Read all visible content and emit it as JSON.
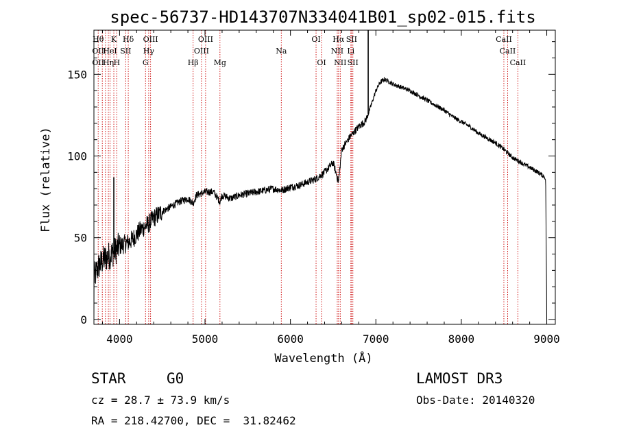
{
  "chart_data": {
    "type": "line",
    "title": "spec-56737-HD143707N334041B01_sp02-015.fits",
    "xlabel": "Wavelength (Å)",
    "ylabel": "Flux (relative)",
    "xlim": [
      3700,
      9100
    ],
    "ylim": [
      -3,
      177
    ],
    "x_ticks": [
      4000,
      5000,
      6000,
      7000,
      8000,
      9000
    ],
    "y_ticks": [
      0,
      50,
      100,
      150
    ],
    "spectrum_anchors": {
      "x": [
        3700,
        3750,
        3800,
        3850,
        3900,
        3950,
        4000,
        4050,
        4100,
        4150,
        4200,
        4250,
        4300,
        4350,
        4400,
        4500,
        4600,
        4700,
        4800,
        4861,
        4900,
        5000,
        5100,
        5175,
        5200,
        5300,
        5400,
        5500,
        5600,
        5700,
        5800,
        5900,
        6000,
        6100,
        6200,
        6300,
        6400,
        6500,
        6563,
        6600,
        6700,
        6800,
        6870,
        6900,
        7000,
        7050,
        7100,
        7200,
        7300,
        7400,
        7500,
        7600,
        7700,
        7800,
        7900,
        8000,
        8100,
        8200,
        8300,
        8400,
        8500,
        8600,
        8700,
        8800,
        8900,
        8980,
        9000
      ],
      "y": [
        25,
        32,
        36,
        38,
        40,
        42,
        45,
        46,
        47,
        49,
        52,
        55,
        57,
        59,
        62,
        66,
        69,
        72,
        74,
        71,
        76,
        78,
        78,
        72,
        76,
        74,
        76,
        77,
        78,
        79,
        80,
        79,
        81,
        82,
        84,
        86,
        90,
        96,
        84,
        104,
        112,
        118,
        121,
        124,
        140,
        145,
        147,
        144,
        142,
        140,
        137,
        134,
        131,
        128,
        124,
        121,
        118,
        114,
        111,
        108,
        104,
        99,
        96,
        93,
        90,
        87,
        76
      ]
    },
    "spikes": [
      {
        "x": 3933,
        "y": 87
      },
      {
        "x": 6910,
        "y": 177
      }
    ],
    "lines": [
      {
        "x": 3750,
        "labels": [
          "Hθ",
          "OII",
          "OII"
        ]
      },
      {
        "x": 3798,
        "labels": []
      },
      {
        "x": 3835,
        "labels": []
      },
      {
        "x": 3869,
        "labels": [
          "",
          "",
          "Hη"
        ]
      },
      {
        "x": 3889,
        "labels": [
          "",
          "HeI",
          ""
        ]
      },
      {
        "x": 3933,
        "labels": [
          "K",
          "",
          ""
        ]
      },
      {
        "x": 3968,
        "labels": [
          "",
          "",
          "H"
        ]
      },
      {
        "x": 4072,
        "labels": [
          "",
          "SII",
          ""
        ]
      },
      {
        "x": 4102,
        "labels": [
          "Hδ",
          "",
          ""
        ]
      },
      {
        "x": 4304,
        "labels": [
          "",
          "",
          "G"
        ]
      },
      {
        "x": 4341,
        "labels": [
          "",
          "Hγ",
          ""
        ]
      },
      {
        "x": 4363,
        "labels": [
          "OIII",
          "",
          ""
        ]
      },
      {
        "x": 4861,
        "labels": [
          "",
          "",
          "Hβ"
        ]
      },
      {
        "x": 4959,
        "labels": [
          "",
          "OIII",
          ""
        ]
      },
      {
        "x": 5007,
        "labels": [
          "OIII",
          "",
          ""
        ]
      },
      {
        "x": 5175,
        "labels": [
          "",
          "",
          "Mg"
        ]
      },
      {
        "x": 5893,
        "labels": [
          "",
          "Na",
          ""
        ]
      },
      {
        "x": 6300,
        "labels": [
          "OI",
          "",
          ""
        ]
      },
      {
        "x": 6364,
        "labels": [
          "",
          "",
          "OI"
        ]
      },
      {
        "x": 6548,
        "labels": [
          "",
          "NII",
          ""
        ]
      },
      {
        "x": 6563,
        "labels": [
          "Hα",
          "",
          ""
        ]
      },
      {
        "x": 6583,
        "labels": [
          "",
          "",
          "NII"
        ]
      },
      {
        "x": 6707,
        "labels": [
          "",
          "Li",
          ""
        ]
      },
      {
        "x": 6716,
        "labels": [
          "SII",
          "",
          ""
        ]
      },
      {
        "x": 6731,
        "labels": [
          "",
          "",
          "SII"
        ]
      },
      {
        "x": 8498,
        "labels": [
          "CaII",
          "",
          ""
        ]
      },
      {
        "x": 8542,
        "labels": [
          "",
          "CaII",
          ""
        ]
      },
      {
        "x": 8662,
        "labels": [
          "",
          "",
          "CaII"
        ]
      }
    ]
  },
  "info": {
    "class": "STAR",
    "subclass": "G0",
    "survey": "LAMOST DR3",
    "cz": "cz = 28.7 ± 73.9 km/s",
    "obs_date": "Obs-Date: 20140320",
    "coords": "RA = 218.42700, DEC =  31.82462"
  },
  "colors": {
    "line_marker": "#cc0000",
    "spectrum": "#000000",
    "axes": "#000000"
  }
}
